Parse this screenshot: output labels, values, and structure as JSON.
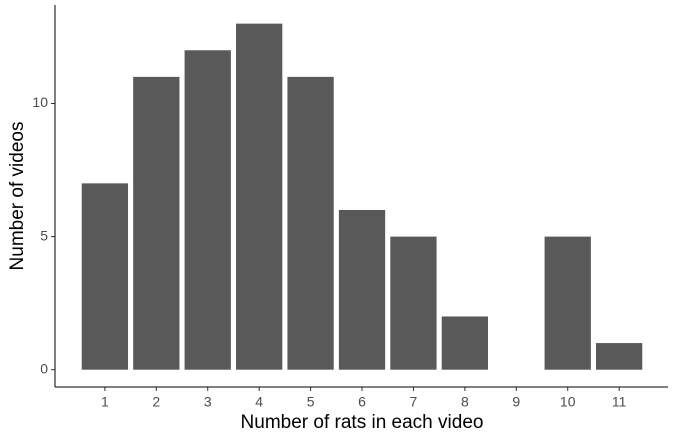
{
  "chart_data": {
    "type": "bar",
    "x_label": "Number of rats in each video",
    "y_label": "Number of videos",
    "x": [
      1,
      2,
      3,
      4,
      5,
      6,
      7,
      8,
      10,
      11
    ],
    "values": [
      7,
      11,
      12,
      13,
      11,
      6,
      5,
      2,
      5,
      1
    ],
    "color": "#595959",
    "xlim": [
      0.03,
      11.95
    ],
    "xticks": [
      1,
      2,
      3,
      4,
      5,
      6,
      7,
      8,
      9,
      10,
      11
    ],
    "ylim": [
      -0.65,
      13.7
    ],
    "yticks": [
      0,
      5,
      10
    ],
    "grid": false
  }
}
